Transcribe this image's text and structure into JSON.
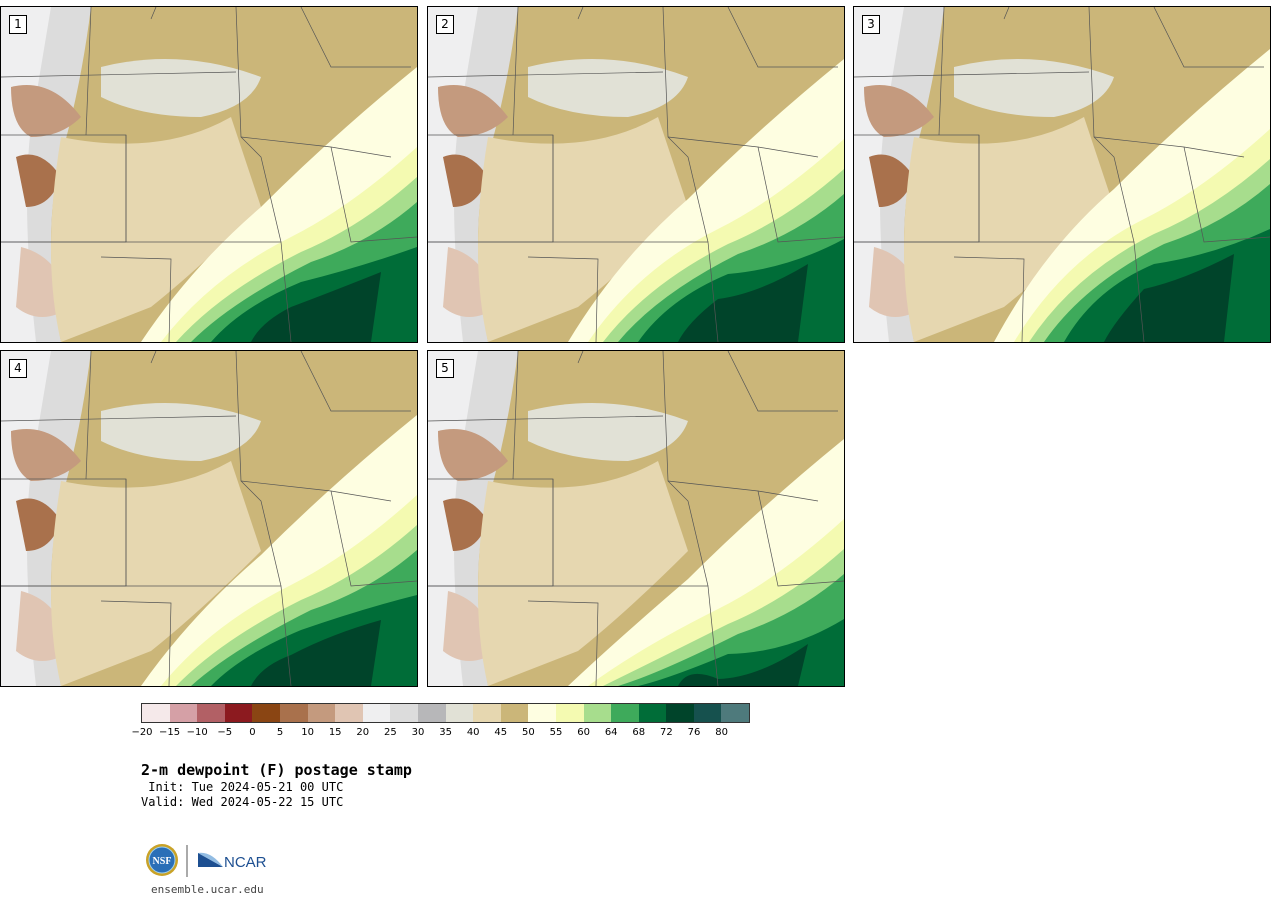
{
  "panels": [
    {
      "label": "1"
    },
    {
      "label": "2"
    },
    {
      "label": "3"
    },
    {
      "label": "4"
    },
    {
      "label": "5"
    }
  ],
  "colorbar": {
    "colors": [
      "#f5e9ea",
      "#d5a0a6",
      "#b26065",
      "#8c1a1f",
      "#8a4513",
      "#a9714c",
      "#c49a7e",
      "#e0c5b3",
      "#efeff0",
      "#dcdcdc",
      "#b7b7b9",
      "#e1e1d6",
      "#e6d7b0",
      "#cbb679",
      "#fefee1",
      "#f4fab1",
      "#a7dd8d",
      "#3eaa5b",
      "#006d38",
      "#00442a",
      "#16514e",
      "#4e7a7c"
    ],
    "ticks": [
      "−20",
      "−15",
      "−10",
      "−5",
      "0",
      "5",
      "10",
      "15",
      "20",
      "25",
      "30",
      "35",
      "40",
      "45",
      "50",
      "55",
      "60",
      "64",
      "68",
      "72",
      "76",
      "80"
    ]
  },
  "title": "2-m dewpoint (F) postage stamp",
  "init_line": " Init: Tue 2024-05-21 00 UTC",
  "valid_line": "Valid: Wed 2024-05-22 15 UTC",
  "logo": {
    "left": "NSF",
    "right": "NCAR"
  },
  "footer_url": "ensemble.ucar.edu"
}
